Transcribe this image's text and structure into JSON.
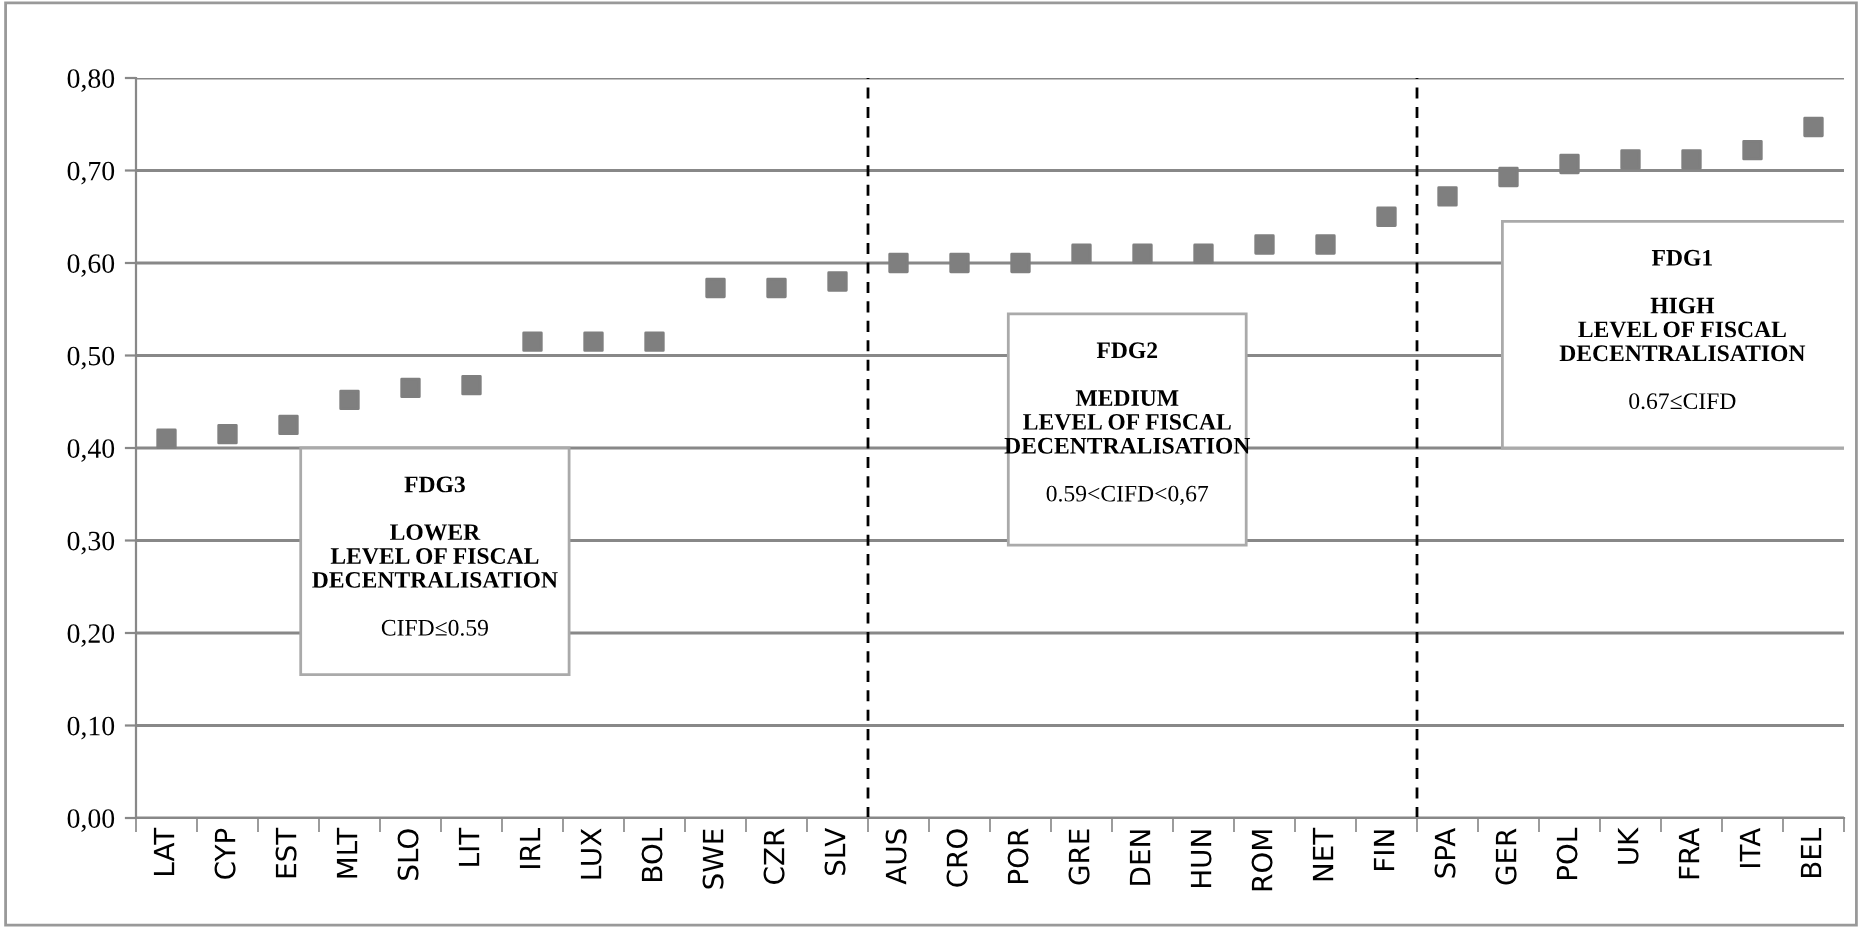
{
  "chart_data": {
    "type": "scatter",
    "marker": "square",
    "grid": "y",
    "categories": [
      "LAT",
      "CYP",
      "EST",
      "MLT",
      "SLO",
      "LIT",
      "IRL",
      "LUX",
      "BOL",
      "SWE",
      "CZR",
      "SLV",
      "AUS",
      "CRO",
      "POR",
      "GRE",
      "DEN",
      "HUN",
      "ROM",
      "NET",
      "FIN",
      "SPA",
      "GER",
      "POL",
      "UK",
      "FRA",
      "ITA",
      "BEL"
    ],
    "series": [
      {
        "color": "#7f7f7f",
        "values": [
          0.41,
          0.415,
          0.425,
          0.452,
          0.465,
          0.468,
          0.515,
          0.515,
          0.515,
          0.573,
          0.573,
          0.58,
          0.6,
          0.6,
          0.6,
          0.61,
          0.61,
          0.61,
          0.62,
          0.62,
          0.65,
          0.672,
          0.693,
          0.707,
          0.712,
          0.712,
          0.722,
          0.747
        ]
      }
    ],
    "ylim": [
      0,
      0.8
    ],
    "yticks": [
      {
        "value": 0,
        "label": "0,00"
      },
      {
        "value": 0.1,
        "label": "0,10"
      },
      {
        "value": 0.2,
        "label": "0,20"
      },
      {
        "value": 0.3,
        "label": "0,30"
      },
      {
        "value": 0.4,
        "label": "0,40"
      },
      {
        "value": 0.5,
        "label": "0,50"
      },
      {
        "value": 0.6,
        "label": "0,60"
      },
      {
        "value": 0.7,
        "label": "0,70"
      },
      {
        "value": 0.8,
        "label": "0,80"
      }
    ],
    "annotations": [
      "FDG3\n\nLOWER\nLEVEL OF FISCAL\nDECENTRALISATION\nCIFD≤0.59",
      "FDG2\n\nMEDIUM\nLEVEL OF FISCAL\nDECENTRALISATION\n0.59<CIFD<0,67",
      "FDG1\n\nHIGH\nLEVEL OF FISCAL\nDECENTRALISATION\n0.67≤CIFD"
    ]
  }
}
